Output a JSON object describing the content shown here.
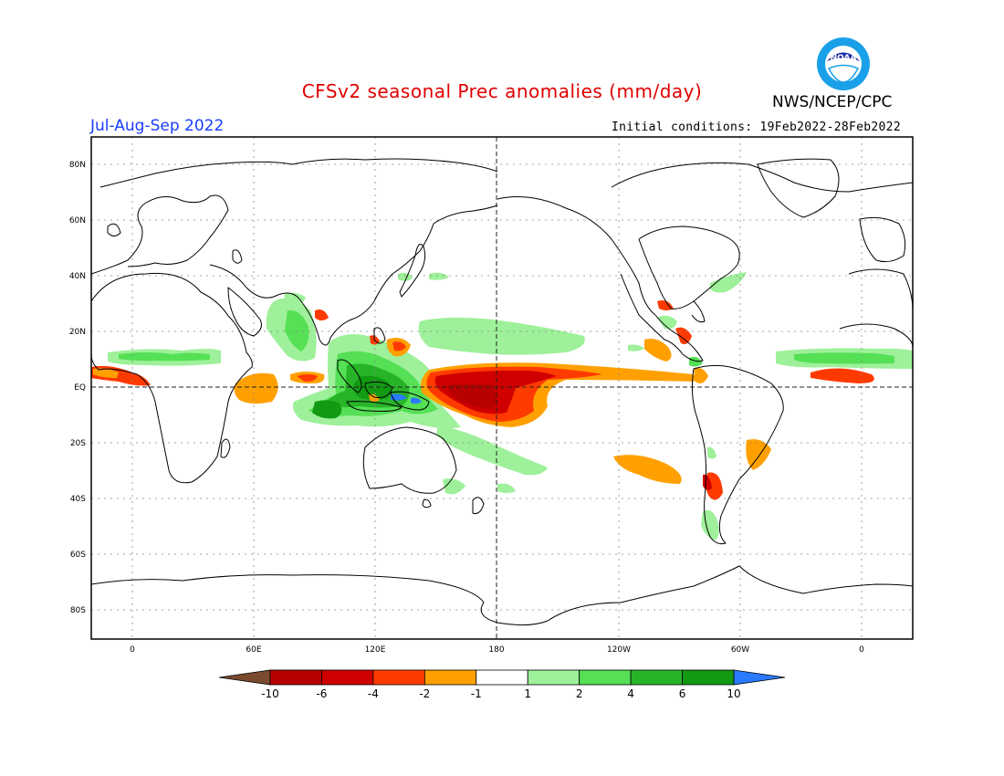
{
  "header": {
    "title": "CFSv2 seasonal Prec anomalies (mm/day)",
    "period": "Jul-Aug-Sep 2022",
    "agency": "NWS/NCEP/CPC",
    "initial_conditions": "Initial conditions: 19Feb2022-28Feb2022",
    "logo_text": "NOAA"
  },
  "map": {
    "lon_labels": [
      "0",
      "60E",
      "120E",
      "180",
      "120W",
      "60W",
      "0"
    ],
    "lat_labels": [
      "80N",
      "60N",
      "40N",
      "20N",
      "EQ",
      "20S",
      "40S",
      "60S",
      "80S"
    ],
    "land_color": "#ffffff",
    "coast_color": "#000000"
  },
  "colorbar": {
    "colors": [
      "#7a4a2e",
      "#b80000",
      "#d00000",
      "#ff3a00",
      "#ffa000",
      "#ffffff",
      "#9ef09a",
      "#55e055",
      "#28b428",
      "#129a12",
      "#2a7aff"
    ],
    "labels": [
      "-10",
      "-6",
      "-4",
      "-2",
      "-1",
      "1",
      "2",
      "4",
      "6",
      "10"
    ]
  }
}
